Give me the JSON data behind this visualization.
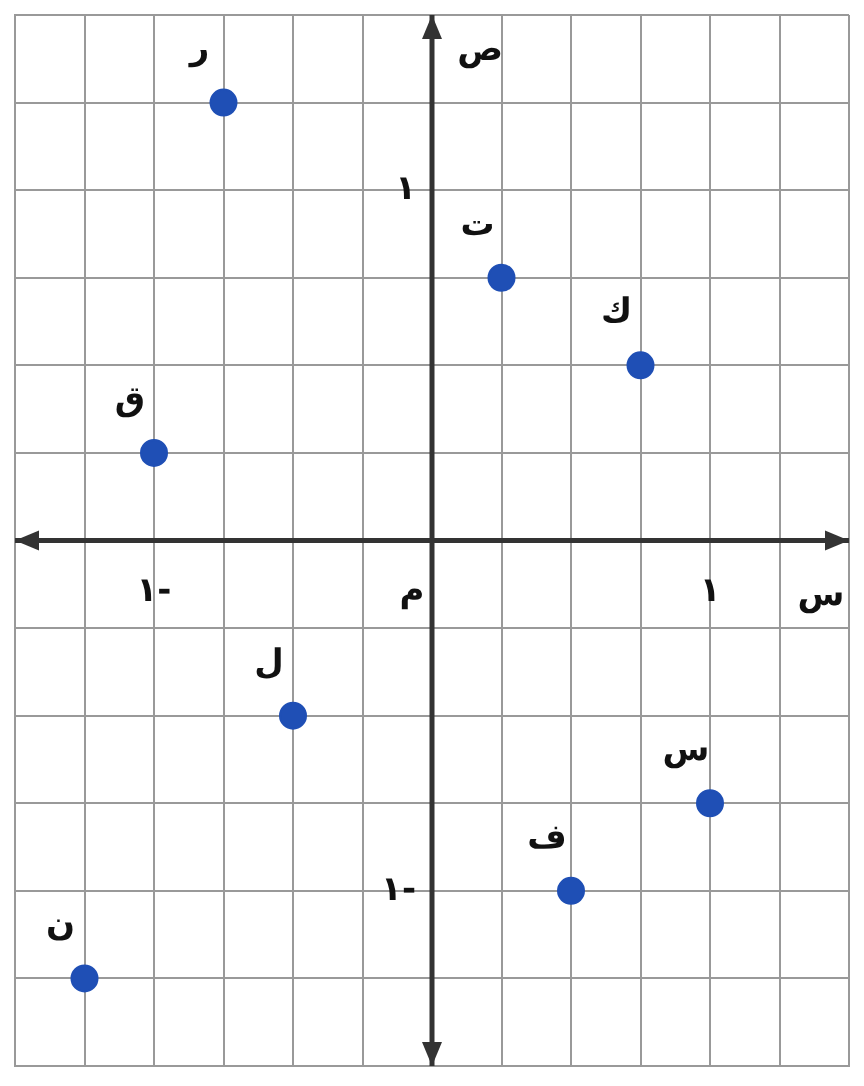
{
  "chart_data": {
    "type": "scatter",
    "xlabel": "س",
    "ylabel": "ص",
    "x": [
      -0.75,
      0.25,
      0.75,
      -1,
      -0.5,
      -1.25,
      0.5,
      1
    ],
    "values": [
      1.25,
      0.75,
      0.5,
      0.25,
      -0.5,
      -1.25,
      -1,
      -0.75
    ],
    "color": "#1f4fb5",
    "marker": "circle",
    "grid": true,
    "legend": false,
    "xlim": [
      -1.5,
      1.5
    ],
    "ylim": [
      -1.5,
      1.5
    ],
    "xticks": [
      {
        "value": -1.5,
        "label": null
      },
      {
        "value": -1.25,
        "label": null
      },
      {
        "value": -1,
        "label": "١-"
      },
      {
        "value": -0.75,
        "label": null
      },
      {
        "value": -0.5,
        "label": null
      },
      {
        "value": -0.25,
        "label": null
      },
      {
        "value": 0,
        "label": null
      },
      {
        "value": 0.25,
        "label": null
      },
      {
        "value": 0.5,
        "label": null
      },
      {
        "value": 0.75,
        "label": null
      },
      {
        "value": 1,
        "label": "١"
      },
      {
        "value": 1.25,
        "label": null
      },
      {
        "value": 1.5,
        "label": null
      }
    ],
    "yticks": [
      {
        "value": -1.5,
        "label": null
      },
      {
        "value": -1.25,
        "label": null
      },
      {
        "value": -1,
        "label": "١-"
      },
      {
        "value": -0.75,
        "label": null
      },
      {
        "value": -0.5,
        "label": null
      },
      {
        "value": -0.25,
        "label": null
      },
      {
        "value": 0,
        "label": null
      },
      {
        "value": 0.25,
        "label": null
      },
      {
        "value": 0.5,
        "label": null
      },
      {
        "value": 0.75,
        "label": null
      },
      {
        "value": 1,
        "label": "١"
      },
      {
        "value": 1.25,
        "label": null
      },
      {
        "value": 1.5,
        "label": null
      }
    ],
    "annotations": [
      {
        "text": "ر",
        "x": -0.75,
        "y": 1.25
      },
      {
        "text": "ت",
        "x": 0.25,
        "y": 0.75
      },
      {
        "text": "ك",
        "x": 0.75,
        "y": 0.5
      },
      {
        "text": "ق",
        "x": -1,
        "y": 0.25
      },
      {
        "text": "ل",
        "x": -0.5,
        "y": -0.5
      },
      {
        "text": "ن",
        "x": -1.25,
        "y": -1.25
      },
      {
        "text": "ف",
        "x": 0.5,
        "y": -1
      },
      {
        "text": "س",
        "x": 1,
        "y": -0.75
      },
      "م"
    ]
  }
}
